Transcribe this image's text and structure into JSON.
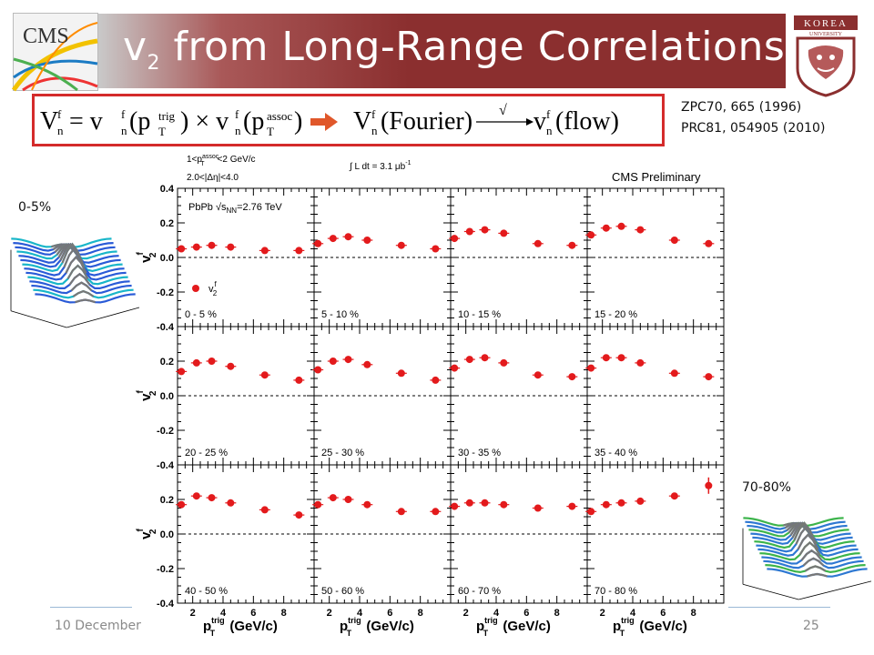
{
  "slide": {
    "title_main": "v",
    "title_sub": "2",
    "title_rest": " from Long-Range Correlations",
    "ref1": "ZPC70, 665 (1996)",
    "ref2": "PRC81, 054905 (2010)",
    "inset_top_label": "0-5%",
    "inset_bottom_label": "70-80%",
    "footer_date": "10 December",
    "page_number": "25"
  },
  "formula": {
    "lhs": "V",
    "lhs_sub": "n",
    "lhs_sup": "f",
    "rhs_part1": " = v",
    "rhs_part1_paren": "(p",
    "trig": "trig",
    "times": ") × v",
    "assoc": "assoc",
    "close": ")",
    "fourier": "(Fourier)",
    "sqrt_symbol": "√",
    "flow": "(flow)",
    "T": "T"
  },
  "chart_data": {
    "type": "scatter",
    "grid_rows": 3,
    "grid_cols": 4,
    "ylim": [
      -0.4,
      0.4
    ],
    "xlim": [
      1,
      10
    ],
    "yticks": [
      "0.4",
      "0.2",
      "0.0",
      "-0.2",
      "-0.4"
    ],
    "xticks": [
      "2",
      "4",
      "6",
      "8"
    ],
    "ylabel": "v",
    "ylabel_sub": "2",
    "ylabel_sup": "f",
    "xlabel": "p",
    "xlabel_sup": "trig",
    "xlabel_sub": "T",
    "xlabel_unit": " (GeV/c)",
    "header_line1_pre": "1<p",
    "header_line1_sup": "assoc",
    "header_line1_sub": "T",
    "header_line1_post": "<2 GeV/c",
    "header_line2": "2.0<|Δη|<4.0",
    "lumi": "∫ L dt = 3.1 μb",
    "lumi_sup": "-1",
    "preliminary": "CMS Preliminary",
    "system_label": "PbPb √s",
    "system_sub": "NN",
    "system_energy": "=2.76 TeV",
    "legend": "v",
    "legend_sub": "2",
    "legend_sup": "f",
    "x": [
      1.25,
      2.25,
      3.25,
      4.5,
      6.75,
      9.0
    ],
    "panels": [
      {
        "label": "0 - 5 %",
        "values": [
          0.05,
          0.06,
          0.07,
          0.06,
          0.04,
          0.04
        ]
      },
      {
        "label": "5 - 10 %",
        "values": [
          0.08,
          0.11,
          0.12,
          0.1,
          0.07,
          0.05
        ]
      },
      {
        "label": "10 - 15 %",
        "values": [
          0.11,
          0.15,
          0.16,
          0.14,
          0.08,
          0.07
        ]
      },
      {
        "label": "15 - 20 %",
        "values": [
          0.13,
          0.17,
          0.18,
          0.16,
          0.1,
          0.08
        ]
      },
      {
        "label": "20 - 25 %",
        "values": [
          0.14,
          0.19,
          0.2,
          0.17,
          0.12,
          0.09
        ]
      },
      {
        "label": "25 - 30 %",
        "values": [
          0.15,
          0.2,
          0.21,
          0.18,
          0.13,
          0.09
        ]
      },
      {
        "label": "30 - 35 %",
        "values": [
          0.16,
          0.21,
          0.22,
          0.19,
          0.12,
          0.11
        ]
      },
      {
        "label": "35 - 40 %",
        "values": [
          0.16,
          0.22,
          0.22,
          0.19,
          0.13,
          0.11
        ]
      },
      {
        "label": "40 - 50 %",
        "values": [
          0.17,
          0.22,
          0.21,
          0.18,
          0.14,
          0.11
        ]
      },
      {
        "label": "50 - 60 %",
        "values": [
          0.17,
          0.21,
          0.2,
          0.17,
          0.13,
          0.13
        ]
      },
      {
        "label": "60 - 70 %",
        "values": [
          0.16,
          0.18,
          0.18,
          0.17,
          0.15,
          0.16
        ]
      },
      {
        "label": "70 - 80 %",
        "values": [
          0.13,
          0.17,
          0.18,
          0.19,
          0.22,
          0.28
        ]
      }
    ],
    "marker_color": "#e31a1c"
  },
  "colors": {
    "banner_red": "#8b2f2f",
    "formula_border": "#d42b2b",
    "arrow_orange": "#e0572a"
  }
}
